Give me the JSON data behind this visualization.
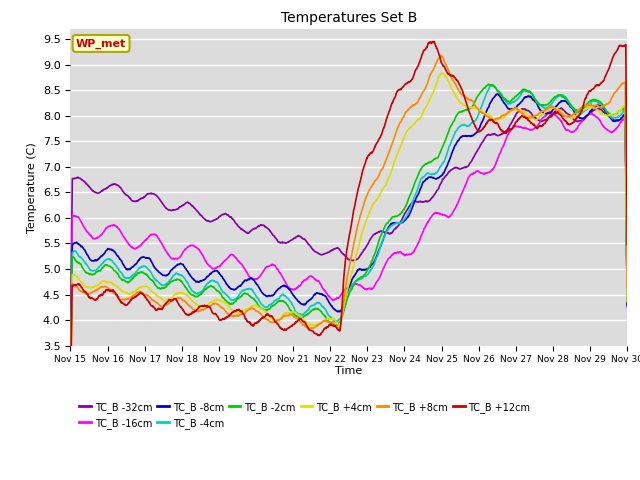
{
  "title": "Temperatures Set B",
  "xlabel": "Time",
  "ylabel": "Temperature (C)",
  "ylim": [
    3.5,
    9.7
  ],
  "xlim": [
    0,
    15
  ],
  "yticks": [
    3.5,
    4.0,
    4.5,
    5.0,
    5.5,
    6.0,
    6.5,
    7.0,
    7.5,
    8.0,
    8.5,
    9.0,
    9.5
  ],
  "x_tick_labels": [
    "Nov 15",
    "Nov 16",
    "Nov 17",
    "Nov 18",
    "Nov 19",
    "Nov 20",
    "Nov 21",
    "Nov 22",
    "Nov 23",
    "Nov 24",
    "Nov 25",
    "Nov 26",
    "Nov 27",
    "Nov 28",
    "Nov 29",
    "Nov 30"
  ],
  "background_color": "#dcdcdc",
  "series": [
    {
      "label": "TC_B -32cm",
      "color": "#8800aa"
    },
    {
      "label": "TC_B -16cm",
      "color": "#ff00ff"
    },
    {
      "label": "TC_B -8cm",
      "color": "#0000cc"
    },
    {
      "label": "TC_B -4cm",
      "color": "#00cccc"
    },
    {
      "label": "TC_B -2cm",
      "color": "#00cc00"
    },
    {
      "label": "TC_B +4cm",
      "color": "#dddd00"
    },
    {
      "label": "TC_B +8cm",
      "color": "#ff8800"
    },
    {
      "label": "TC_B +12cm",
      "color": "#cc0000"
    }
  ],
  "legend_box_facecolor": "#ffffcc",
  "legend_box_edgecolor": "#aaaa00",
  "legend_box_text": "WP_met",
  "legend_box_text_color": "#cc0000"
}
